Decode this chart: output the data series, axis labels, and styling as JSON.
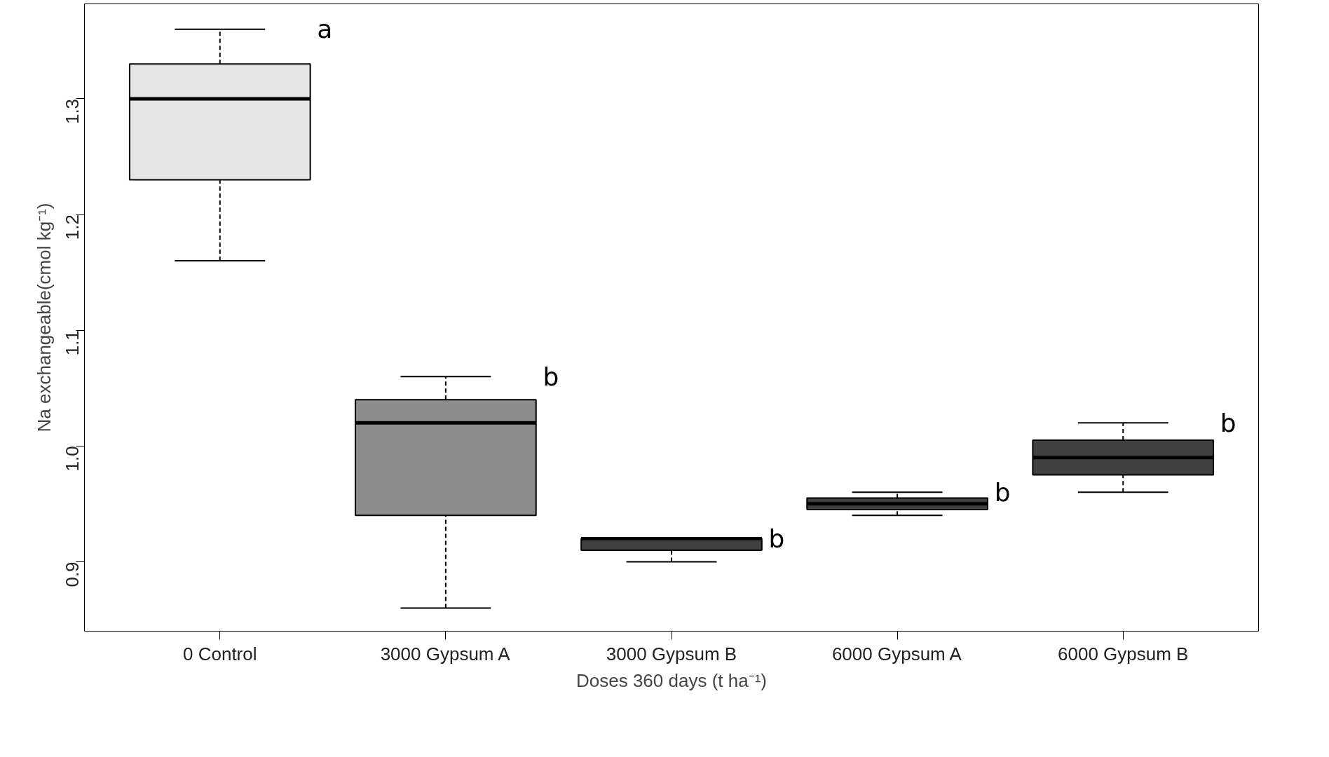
{
  "chart_data": {
    "type": "box",
    "xlabel": "Doses 360 days (t ha⁻¹)",
    "ylabel": "Na exchangeable(cmol kg⁻¹)",
    "categories": [
      "0 Control",
      "3000 Gypsum A",
      "3000 Gypsum B",
      "6000 Gypsum A",
      "6000 Gypsum B"
    ],
    "colors": [
      "#e5e5e5",
      "#8c8c8c",
      "#404040",
      "#404040",
      "#404040"
    ],
    "boxes": [
      {
        "low": 1.16,
        "q1": 1.23,
        "median": 1.3,
        "q3": 1.33,
        "high": 1.36
      },
      {
        "low": 0.86,
        "q1": 0.94,
        "median": 1.02,
        "q3": 1.04,
        "high": 1.06
      },
      {
        "low": 0.9,
        "q1": 0.91,
        "median": 0.92,
        "q3": 0.92,
        "high": 0.92
      },
      {
        "low": 0.94,
        "q1": 0.945,
        "median": 0.95,
        "q3": 0.955,
        "high": 0.96
      },
      {
        "low": 0.96,
        "q1": 0.975,
        "median": 0.99,
        "q3": 1.005,
        "high": 1.02
      }
    ],
    "ylim": [
      0.84,
      1.382
    ],
    "yticks": [
      {
        "value": 0.9,
        "label": "0.9"
      },
      {
        "value": 1.0,
        "label": "1.0"
      },
      {
        "value": 1.1,
        "label": "1.1"
      },
      {
        "value": 1.2,
        "label": "1.2"
      },
      {
        "value": 1.3,
        "label": "1.3"
      }
    ],
    "grid": false,
    "annotations": [
      "a",
      "b",
      "b",
      "b",
      "b"
    ]
  }
}
